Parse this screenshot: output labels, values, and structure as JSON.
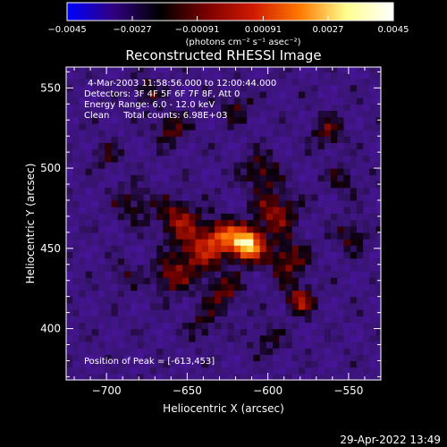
{
  "chart_data": {
    "type": "heatmap",
    "title": "Reconstructed RHESSI Image",
    "xlabel": "Heliocentric X (arcsec)",
    "ylabel": "Heliocentric Y (arcsec)",
    "xlim": [
      -725,
      -530
    ],
    "ylim": [
      368,
      563
    ],
    "xticks": [
      -700,
      -650,
      -600,
      -550
    ],
    "yticks": [
      400,
      450,
      500,
      550
    ],
    "xtick_labels": [
      "−700",
      "−650",
      "−600",
      "−550"
    ],
    "ytick_labels": [
      "400",
      "450",
      "500",
      "550"
    ],
    "colorbar": {
      "range": [
        -0.0045,
        0.0045
      ],
      "tick_values": [
        -0.0045,
        -0.0027,
        -0.00091,
        0.00091,
        0.0027,
        0.0045
      ],
      "tick_labels": [
        "−0.0045",
        "−0.0027",
        "−0.00091",
        "0.00091",
        "0.0027",
        "0.0045"
      ],
      "unit_label": "(photons cm⁻² s⁻¹ asec⁻²)",
      "colors": [
        "#0000ff",
        "#300080",
        "#000000",
        "#7a0000",
        "#d01a00",
        "#ff7a00",
        "#ffff90",
        "#ffffff"
      ]
    },
    "info_lines": [
      "4-Mar-2003 11:58:56.000 to 12:00:44.000",
      "Detectors: 3F 4F 5F 6F 7F 8F, Att 0",
      "Energy Range: 6.0 - 12.0 keV",
      "Clean     Total counts: 6.98E+03"
    ],
    "peak_label": "Position of Peak = [-613,453]",
    "peak": {
      "x": -613,
      "y": 453
    },
    "sources": [
      {
        "x": -613,
        "y": 453,
        "amp": 1.0,
        "sigma": 7
      },
      {
        "x": -628,
        "y": 458,
        "amp": 0.55,
        "sigma": 7
      },
      {
        "x": -642,
        "y": 448,
        "amp": 0.45,
        "sigma": 9
      },
      {
        "x": -655,
        "y": 468,
        "amp": 0.4,
        "sigma": 9
      },
      {
        "x": -660,
        "y": 433,
        "amp": 0.35,
        "sigma": 8
      },
      {
        "x": -595,
        "y": 473,
        "amp": 0.4,
        "sigma": 9
      },
      {
        "x": -588,
        "y": 443,
        "amp": 0.35,
        "sigma": 9
      },
      {
        "x": -580,
        "y": 418,
        "amp": 0.45,
        "sigma": 6
      },
      {
        "x": -628,
        "y": 423,
        "amp": 0.3,
        "sigma": 8
      },
      {
        "x": -605,
        "y": 498,
        "amp": 0.3,
        "sigma": 8
      },
      {
        "x": -660,
        "y": 525,
        "amp": 0.3,
        "sigma": 7
      },
      {
        "x": -675,
        "y": 548,
        "amp": 0.25,
        "sigma": 6
      },
      {
        "x": -563,
        "y": 523,
        "amp": 0.28,
        "sigma": 7
      },
      {
        "x": -700,
        "y": 508,
        "amp": 0.2,
        "sigma": 6
      },
      {
        "x": -683,
        "y": 478,
        "amp": 0.25,
        "sigma": 8
      },
      {
        "x": -548,
        "y": 458,
        "amp": 0.25,
        "sigma": 7
      },
      {
        "x": -553,
        "y": 493,
        "amp": 0.2,
        "sigma": 7
      },
      {
        "x": -620,
        "y": 538,
        "amp": 0.22,
        "sigma": 7
      },
      {
        "x": -640,
        "y": 403,
        "amp": 0.2,
        "sigma": 7
      },
      {
        "x": -600,
        "y": 393,
        "amp": 0.2,
        "sigma": 7
      },
      {
        "x": -690,
        "y": 433,
        "amp": 0.18,
        "sigma": 6
      }
    ]
  },
  "footer": {
    "timestamp": "29-Apr-2022 13:49"
  }
}
